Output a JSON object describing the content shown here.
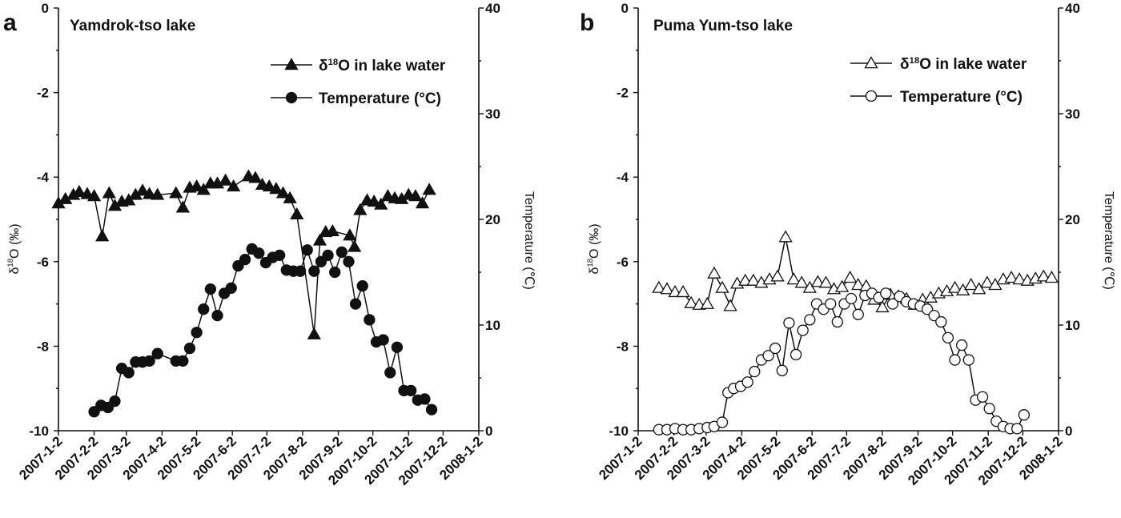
{
  "chart_data": [
    {
      "type": "line",
      "panel_label": "a",
      "title": "Yamdrok-tso lake",
      "ylabel_left": "δ18O (‰)",
      "ylabel_right": "Temperature (℃)",
      "ylim_left": [
        -10,
        0
      ],
      "ylim_right": [
        0,
        40
      ],
      "yticks_left": [
        "0",
        "-2",
        "-4",
        "-6",
        "-8",
        "-10"
      ],
      "yticks_right": [
        "40",
        "30",
        "20",
        "10",
        "0"
      ],
      "xlim": [
        "2007-1-2",
        "2008-1-2"
      ],
      "xticks": [
        "2007-1-2",
        "2007-2-2",
        "2007-3-2",
        "2007-4-2",
        "2007-5-2",
        "2007-6-2",
        "2007-7-2",
        "2007-8-2",
        "2007-9-2",
        "2007-10-2",
        "2007-11-2",
        "2007-12-2",
        "2008-1-2"
      ],
      "marker_fill": "#111111",
      "legend_position": "top-right",
      "series": [
        {
          "name": "δ18O in lake water",
          "axis": "left",
          "marker": "triangle",
          "points": [
            [
              "2007-1-2",
              -4.62
            ],
            [
              "2007-1-8",
              -4.52
            ],
            [
              "2007-1-15",
              -4.42
            ],
            [
              "2007-1-20",
              -4.35
            ],
            [
              "2007-1-27",
              -4.4
            ],
            [
              "2007-2-2",
              -4.45
            ],
            [
              "2007-2-9",
              -5.4
            ],
            [
              "2007-2-15",
              -4.38
            ],
            [
              "2007-2-20",
              -4.68
            ],
            [
              "2007-2-26",
              -4.58
            ],
            [
              "2007-3-4",
              -4.55
            ],
            [
              "2007-3-10",
              -4.42
            ],
            [
              "2007-3-16",
              -4.32
            ],
            [
              "2007-3-22",
              -4.4
            ],
            [
              "2007-3-29",
              -4.42
            ],
            [
              "2007-4-14",
              -4.38
            ],
            [
              "2007-4-20",
              -4.72
            ],
            [
              "2007-4-26",
              -4.25
            ],
            [
              "2007-5-2",
              -4.22
            ],
            [
              "2007-5-8",
              -4.3
            ],
            [
              "2007-5-14",
              -4.15
            ],
            [
              "2007-5-20",
              -4.15
            ],
            [
              "2007-5-27",
              -4.08
            ],
            [
              "2007-6-3",
              -4.22
            ],
            [
              "2007-6-16",
              -3.98
            ],
            [
              "2007-6-22",
              -4.02
            ],
            [
              "2007-6-28",
              -4.18
            ],
            [
              "2007-7-4",
              -4.22
            ],
            [
              "2007-7-10",
              -4.28
            ],
            [
              "2007-7-16",
              -4.38
            ],
            [
              "2007-7-22",
              -4.5
            ],
            [
              "2007-7-28",
              -4.88
            ],
            [
              "2007-8-12",
              -7.72
            ],
            [
              "2007-8-17",
              -5.5
            ],
            [
              "2007-8-22",
              -5.3
            ],
            [
              "2007-8-28",
              -5.28
            ],
            [
              "2007-9-12",
              -5.38
            ],
            [
              "2007-9-16",
              -5.65
            ],
            [
              "2007-9-21",
              -4.78
            ],
            [
              "2007-9-27",
              -4.55
            ],
            [
              "2007-10-3",
              -4.58
            ],
            [
              "2007-10-9",
              -4.65
            ],
            [
              "2007-10-15",
              -4.45
            ],
            [
              "2007-10-21",
              -4.5
            ],
            [
              "2007-10-27",
              -4.52
            ],
            [
              "2007-11-2",
              -4.42
            ],
            [
              "2007-11-8",
              -4.45
            ],
            [
              "2007-11-14",
              -4.62
            ],
            [
              "2007-11-20",
              -4.3
            ]
          ]
        },
        {
          "name": "Temperature (°C)",
          "axis": "right",
          "marker": "circle",
          "points": [
            [
              "2007-2-2",
              1.8
            ],
            [
              "2007-2-8",
              2.4
            ],
            [
              "2007-2-14",
              2.2
            ],
            [
              "2007-2-20",
              2.8
            ],
            [
              "2007-2-26",
              5.9
            ],
            [
              "2007-3-4",
              5.5
            ],
            [
              "2007-3-10",
              6.5
            ],
            [
              "2007-3-16",
              6.5
            ],
            [
              "2007-3-22",
              6.6
            ],
            [
              "2007-3-29",
              7.3
            ],
            [
              "2007-4-14",
              6.6
            ],
            [
              "2007-4-20",
              6.6
            ],
            [
              "2007-4-26",
              7.8
            ],
            [
              "2007-5-2",
              9.3
            ],
            [
              "2007-5-8",
              11.5
            ],
            [
              "2007-5-14",
              13.4
            ],
            [
              "2007-5-20",
              10.9
            ],
            [
              "2007-5-26",
              13.0
            ],
            [
              "2007-6-1",
              13.5
            ],
            [
              "2007-6-7",
              15.6
            ],
            [
              "2007-6-13",
              16.2
            ],
            [
              "2007-6-19",
              17.2
            ],
            [
              "2007-6-25",
              16.8
            ],
            [
              "2007-7-1",
              15.9
            ],
            [
              "2007-7-7",
              16.4
            ],
            [
              "2007-7-13",
              16.6
            ],
            [
              "2007-7-19",
              15.2
            ],
            [
              "2007-7-25",
              15.1
            ],
            [
              "2007-7-31",
              15.1
            ],
            [
              "2007-8-6",
              17.1
            ],
            [
              "2007-8-12",
              15.1
            ],
            [
              "2007-8-18",
              16.0
            ],
            [
              "2007-8-24",
              16.6
            ],
            [
              "2007-8-30",
              15.0
            ],
            [
              "2007-9-5",
              16.9
            ],
            [
              "2007-9-11",
              16.0
            ],
            [
              "2007-9-17",
              12.0
            ],
            [
              "2007-9-23",
              13.7
            ],
            [
              "2007-9-29",
              10.5
            ],
            [
              "2007-10-5",
              8.4
            ],
            [
              "2007-10-11",
              8.6
            ],
            [
              "2007-10-17",
              5.5
            ],
            [
              "2007-10-23",
              7.9
            ],
            [
              "2007-10-29",
              3.8
            ],
            [
              "2007-11-4",
              3.8
            ],
            [
              "2007-11-10",
              2.9
            ],
            [
              "2007-11-16",
              3.0
            ],
            [
              "2007-11-22",
              2.0
            ]
          ]
        }
      ]
    },
    {
      "type": "line",
      "panel_label": "b",
      "title": "Puma Yum-tso lake",
      "ylabel_left": "δ18O (‰)",
      "ylabel_right": "Temperature (℃)",
      "ylim_left": [
        -10,
        0
      ],
      "ylim_right": [
        0,
        40
      ],
      "yticks_left": [
        "0",
        "-2",
        "-4",
        "-6",
        "-8",
        "-10"
      ],
      "yticks_right": [
        "40",
        "30",
        "20",
        "10",
        "0"
      ],
      "xlim": [
        "2007-1-2",
        "2008-1-2"
      ],
      "xticks": [
        "2007-1-2",
        "2007-2-2",
        "2007-3-2",
        "2007-4-2",
        "2007-5-2",
        "2007-6-2",
        "2007-7-2",
        "2007-8-2",
        "2007-9-2",
        "2007-10-2",
        "2007-11-2",
        "2007-12-2",
        "2008-1-2"
      ],
      "marker_fill": "#ffffff",
      "legend_position": "top-right",
      "series": [
        {
          "name": "δ18O in lake water",
          "axis": "left",
          "marker": "triangle",
          "points": [
            [
              "2007-1-20",
              -6.62
            ],
            [
              "2007-1-27",
              -6.65
            ],
            [
              "2007-2-3",
              -6.72
            ],
            [
              "2007-2-10",
              -6.72
            ],
            [
              "2007-2-17",
              -6.98
            ],
            [
              "2007-2-24",
              -7.02
            ],
            [
              "2007-3-3",
              -7.0
            ],
            [
              "2007-3-9",
              -6.28
            ],
            [
              "2007-3-16",
              -6.62
            ],
            [
              "2007-3-23",
              -7.05
            ],
            [
              "2007-3-29",
              -6.52
            ],
            [
              "2007-4-5",
              -6.45
            ],
            [
              "2007-4-12",
              -6.45
            ],
            [
              "2007-4-19",
              -6.5
            ],
            [
              "2007-4-26",
              -6.42
            ],
            [
              "2007-5-3",
              -6.35
            ],
            [
              "2007-5-10",
              -5.42
            ],
            [
              "2007-5-17",
              -6.42
            ],
            [
              "2007-5-24",
              -6.5
            ],
            [
              "2007-5-31",
              -6.62
            ],
            [
              "2007-6-7",
              -6.48
            ],
            [
              "2007-6-14",
              -6.5
            ],
            [
              "2007-6-21",
              -6.65
            ],
            [
              "2007-6-28",
              -6.6
            ],
            [
              "2007-7-5",
              -6.38
            ],
            [
              "2007-7-12",
              -6.55
            ],
            [
              "2007-7-19",
              -6.58
            ],
            [
              "2007-7-26",
              -6.9
            ],
            [
              "2007-8-2",
              -7.08
            ],
            [
              "2007-8-9",
              -6.78
            ],
            [
              "2007-8-16",
              -6.82
            ],
            [
              "2007-8-23",
              -6.88
            ],
            [
              "2007-8-30",
              -7.02
            ],
            [
              "2007-9-6",
              -6.9
            ],
            [
              "2007-9-13",
              -6.85
            ],
            [
              "2007-9-20",
              -6.75
            ],
            [
              "2007-9-27",
              -6.7
            ],
            [
              "2007-10-4",
              -6.62
            ],
            [
              "2007-10-11",
              -6.68
            ],
            [
              "2007-10-18",
              -6.55
            ],
            [
              "2007-10-25",
              -6.65
            ],
            [
              "2007-11-1",
              -6.5
            ],
            [
              "2007-11-8",
              -6.55
            ],
            [
              "2007-11-15",
              -6.42
            ],
            [
              "2007-11-22",
              -6.38
            ],
            [
              "2007-11-29",
              -6.42
            ],
            [
              "2007-12-6",
              -6.45
            ],
            [
              "2007-12-13",
              -6.4
            ],
            [
              "2007-12-20",
              -6.35
            ],
            [
              "2007-12-27",
              -6.38
            ]
          ]
        },
        {
          "name": "Temperature (°C)",
          "axis": "right",
          "marker": "circle",
          "points": [
            [
              "2007-1-20",
              0.1
            ],
            [
              "2007-1-27",
              0.1
            ],
            [
              "2007-2-3",
              0.2
            ],
            [
              "2007-2-10",
              0.1
            ],
            [
              "2007-2-17",
              0.1
            ],
            [
              "2007-2-24",
              0.2
            ],
            [
              "2007-3-3",
              0.3
            ],
            [
              "2007-3-9",
              0.4
            ],
            [
              "2007-3-16",
              0.8
            ],
            [
              "2007-3-21",
              3.6
            ],
            [
              "2007-3-26",
              4.0
            ],
            [
              "2007-4-1",
              4.2
            ],
            [
              "2007-4-7",
              4.6
            ],
            [
              "2007-4-13",
              5.6
            ],
            [
              "2007-4-19",
              6.7
            ],
            [
              "2007-4-25",
              7.1
            ],
            [
              "2007-5-1",
              7.8
            ],
            [
              "2007-5-7",
              5.7
            ],
            [
              "2007-5-13",
              10.2
            ],
            [
              "2007-5-19",
              7.2
            ],
            [
              "2007-5-25",
              9.5
            ],
            [
              "2007-5-31",
              10.5
            ],
            [
              "2007-6-6",
              12.0
            ],
            [
              "2007-6-12",
              11.5
            ],
            [
              "2007-6-18",
              12.0
            ],
            [
              "2007-6-24",
              10.3
            ],
            [
              "2007-6-30",
              12.0
            ],
            [
              "2007-7-6",
              12.5
            ],
            [
              "2007-7-12",
              11.0
            ],
            [
              "2007-7-18",
              12.8
            ],
            [
              "2007-7-24",
              13.0
            ],
            [
              "2007-7-30",
              12.6
            ],
            [
              "2007-8-5",
              13.0
            ],
            [
              "2007-8-11",
              12.0
            ],
            [
              "2007-8-17",
              12.7
            ],
            [
              "2007-8-23",
              12.2
            ],
            [
              "2007-8-29",
              12.0
            ],
            [
              "2007-9-4",
              11.8
            ],
            [
              "2007-9-10",
              11.5
            ],
            [
              "2007-9-16",
              10.9
            ],
            [
              "2007-9-22",
              10.3
            ],
            [
              "2007-9-28",
              8.8
            ],
            [
              "2007-10-4",
              6.7
            ],
            [
              "2007-10-10",
              8.1
            ],
            [
              "2007-10-16",
              6.7
            ],
            [
              "2007-10-22",
              2.9
            ],
            [
              "2007-10-28",
              3.2
            ],
            [
              "2007-11-3",
              2.1
            ],
            [
              "2007-11-9",
              0.9
            ],
            [
              "2007-11-15",
              0.4
            ],
            [
              "2007-11-21",
              0.2
            ],
            [
              "2007-11-27",
              0.2
            ],
            [
              "2007-12-3",
              1.5
            ]
          ]
        }
      ]
    }
  ]
}
